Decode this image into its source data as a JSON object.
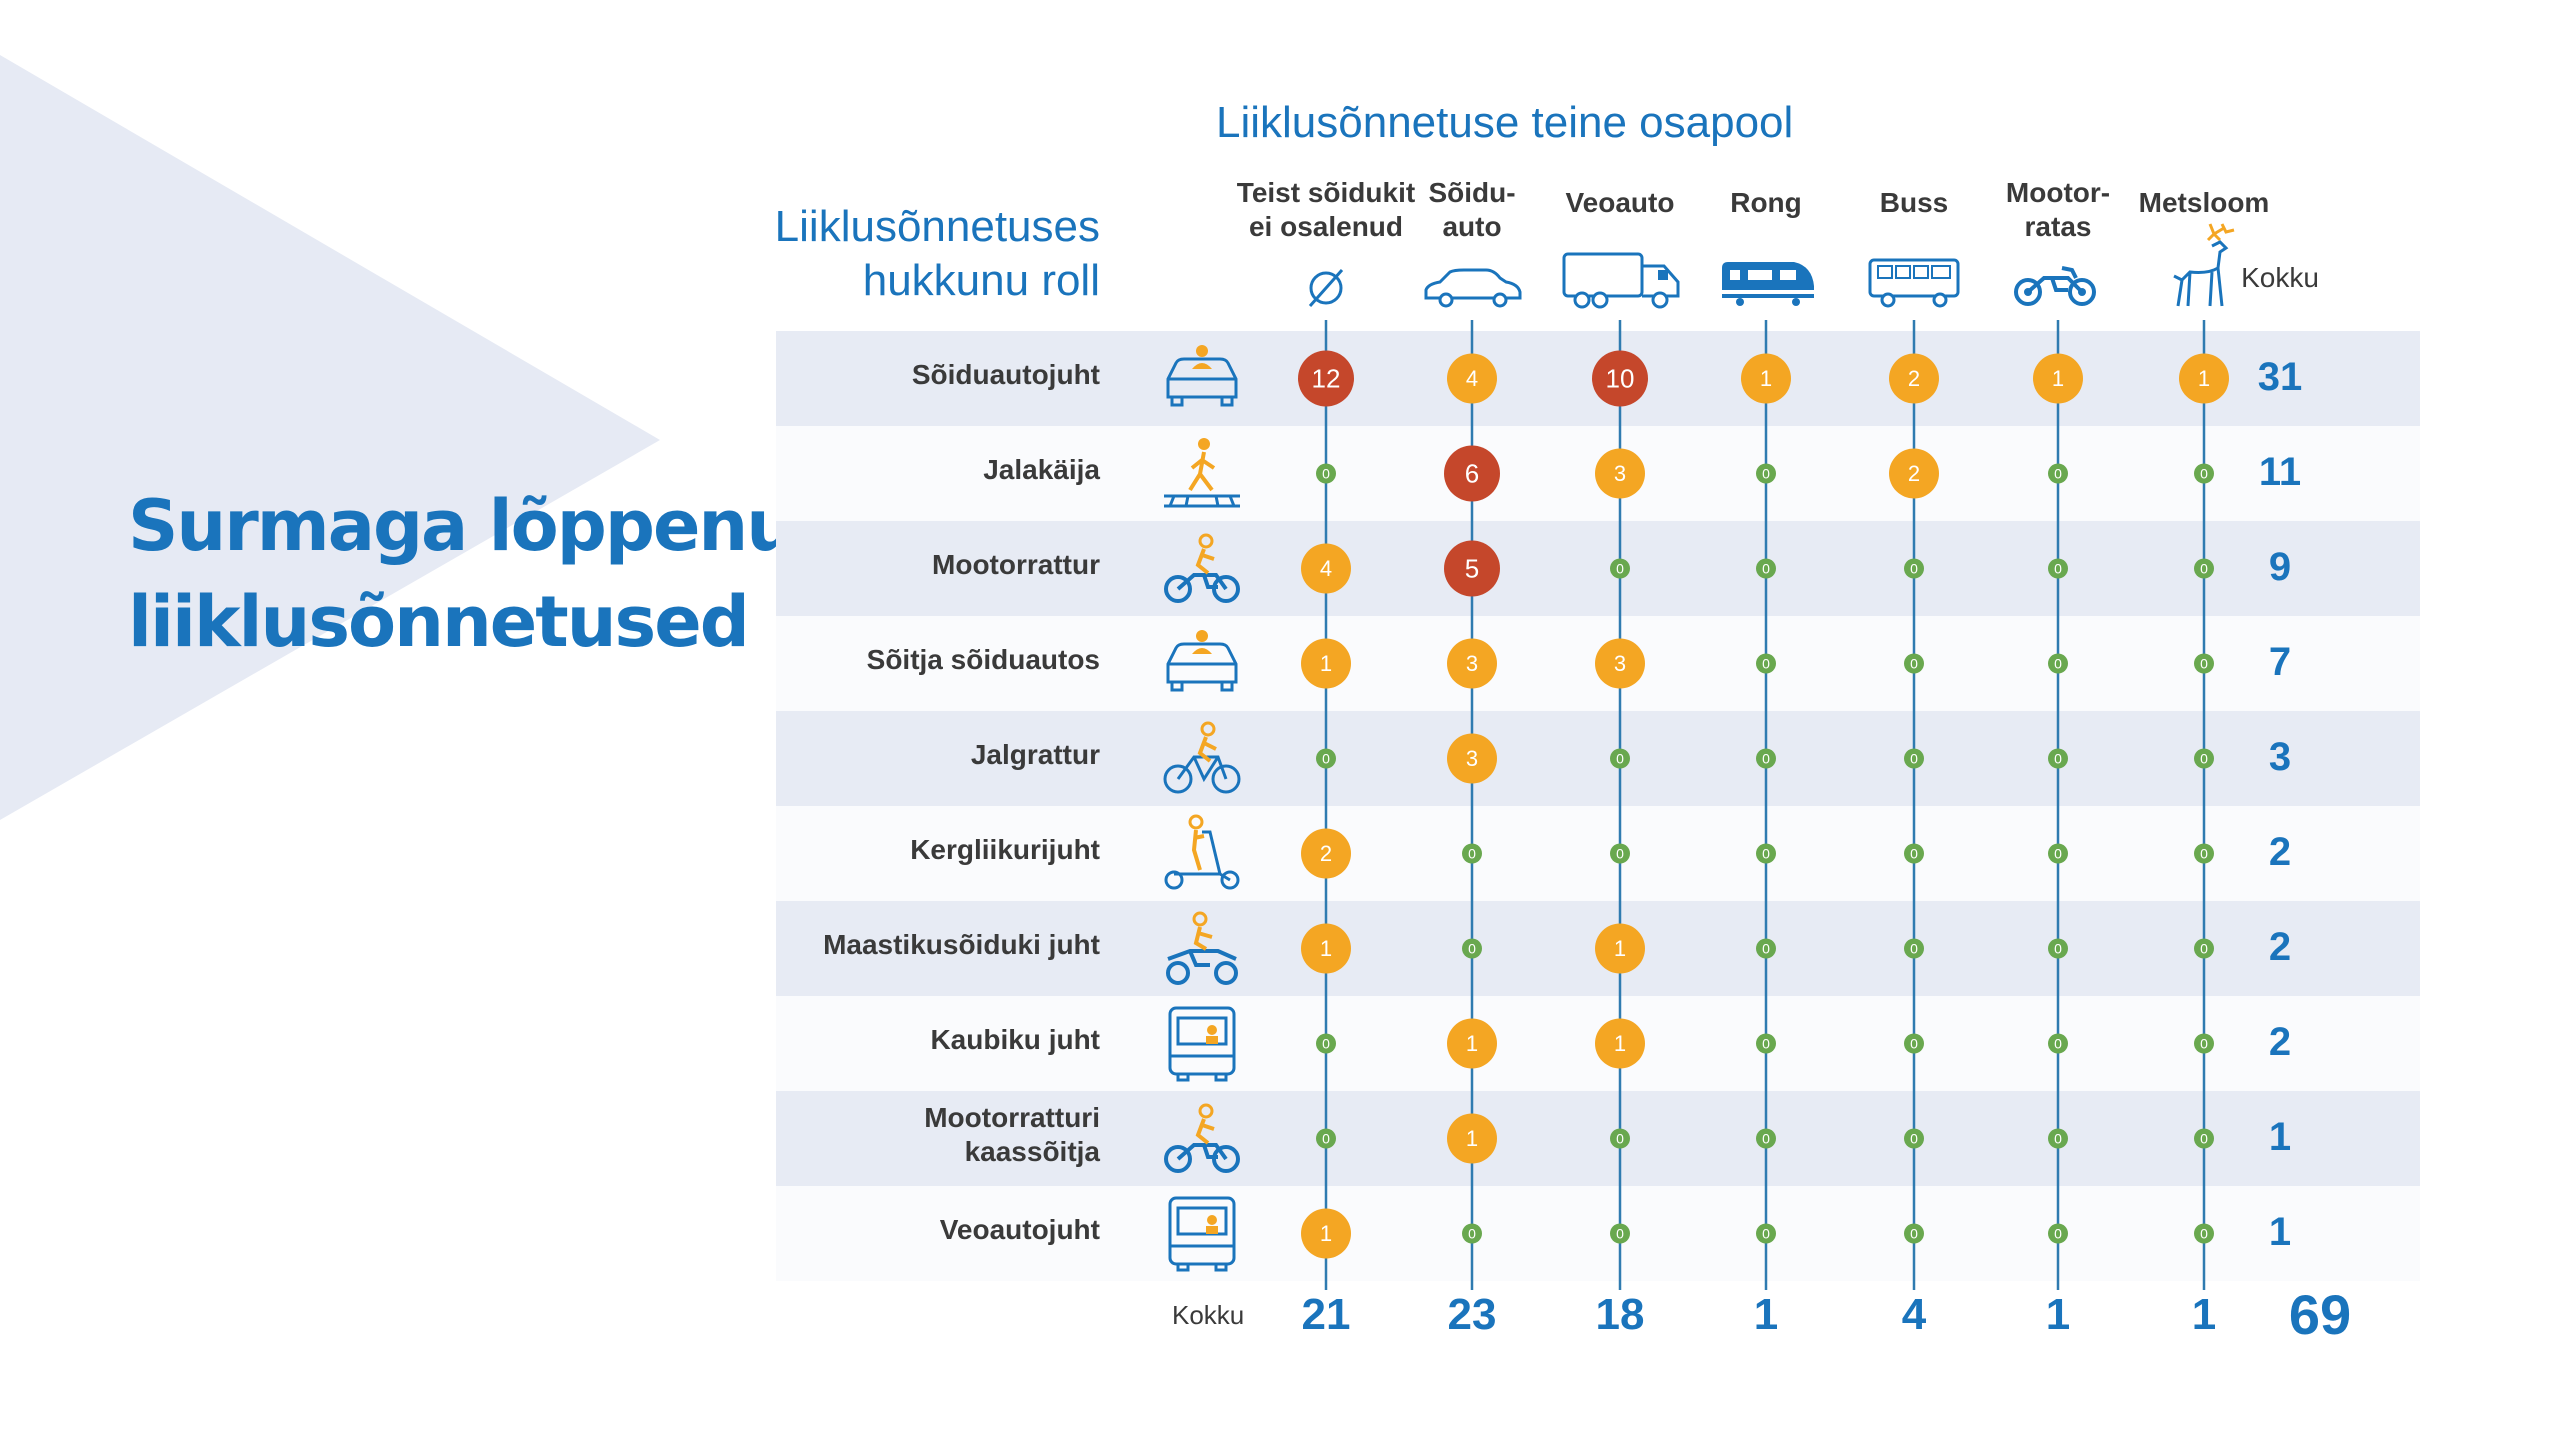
{
  "slide_title": [
    "Surmaga lõppenud",
    "liiklusõnnetused"
  ],
  "colors": {
    "accent": "#1a74bc",
    "line": "#2f7bb0",
    "high": "#c5472b",
    "mid": "#f4a623",
    "zero": "#69a84f",
    "band": "#e7ebf4",
    "triangle": "#e6eaf4"
  },
  "chart_data": {
    "type": "table",
    "title": "Liiklusõnnetuse teine osapool",
    "row_header": [
      "Liiklusõnnetuses",
      "hukkunu roll"
    ],
    "total_label": "Kokku",
    "columns": [
      {
        "label": [
          "Teist sõidukit",
          "ei osalenud"
        ],
        "icon": "empty-set-icon"
      },
      {
        "label": [
          "Sõidu-",
          "auto"
        ],
        "icon": "car-icon"
      },
      {
        "label": [
          "Veoauto"
        ],
        "icon": "truck-icon"
      },
      {
        "label": [
          "Rong"
        ],
        "icon": "train-icon"
      },
      {
        "label": [
          "Buss"
        ],
        "icon": "bus-icon"
      },
      {
        "label": [
          "Mootor-",
          "ratas"
        ],
        "icon": "motorcycle-icon"
      },
      {
        "label": [
          "Metsloom"
        ],
        "icon": "deer-icon"
      }
    ],
    "rows": [
      {
        "label": [
          "Sõiduautojuht"
        ],
        "icon": "car-driver-icon",
        "values": [
          12,
          4,
          10,
          1,
          2,
          1,
          1
        ],
        "total": 31
      },
      {
        "label": [
          "Jalakäija"
        ],
        "icon": "pedestrian-icon",
        "values": [
          0,
          6,
          3,
          0,
          2,
          0,
          0
        ],
        "total": 11
      },
      {
        "label": [
          "Mootorrattur"
        ],
        "icon": "motorcyclist-icon",
        "values": [
          4,
          5,
          0,
          0,
          0,
          0,
          0
        ],
        "total": 9
      },
      {
        "label": [
          "Sõitja sõiduautos"
        ],
        "icon": "car-passenger-icon",
        "values": [
          1,
          3,
          3,
          0,
          0,
          0,
          0
        ],
        "total": 7
      },
      {
        "label": [
          "Jalgrattur"
        ],
        "icon": "cyclist-icon",
        "values": [
          0,
          3,
          0,
          0,
          0,
          0,
          0
        ],
        "total": 3
      },
      {
        "label": [
          "Kergliikurijuht"
        ],
        "icon": "scooter-icon",
        "values": [
          2,
          0,
          0,
          0,
          0,
          0,
          0
        ],
        "total": 2
      },
      {
        "label": [
          "Maastikusõiduki juht"
        ],
        "icon": "atv-icon",
        "values": [
          1,
          0,
          1,
          0,
          0,
          0,
          0
        ],
        "total": 2
      },
      {
        "label": [
          "Kaubiku juht"
        ],
        "icon": "van-driver-icon",
        "values": [
          0,
          1,
          1,
          0,
          0,
          0,
          0
        ],
        "total": 2
      },
      {
        "label": [
          "Mootorratturi",
          "kaassõitja"
        ],
        "icon": "motorcycle-passenger-icon",
        "values": [
          0,
          1,
          0,
          0,
          0,
          0,
          0
        ],
        "total": 1
      },
      {
        "label": [
          "Veoautojuht"
        ],
        "icon": "truck-driver-icon",
        "values": [
          1,
          0,
          0,
          0,
          0,
          0,
          0
        ],
        "total": 1
      }
    ],
    "column_totals": [
      21,
      23,
      18,
      1,
      4,
      1,
      1
    ],
    "grand_total": 69
  }
}
